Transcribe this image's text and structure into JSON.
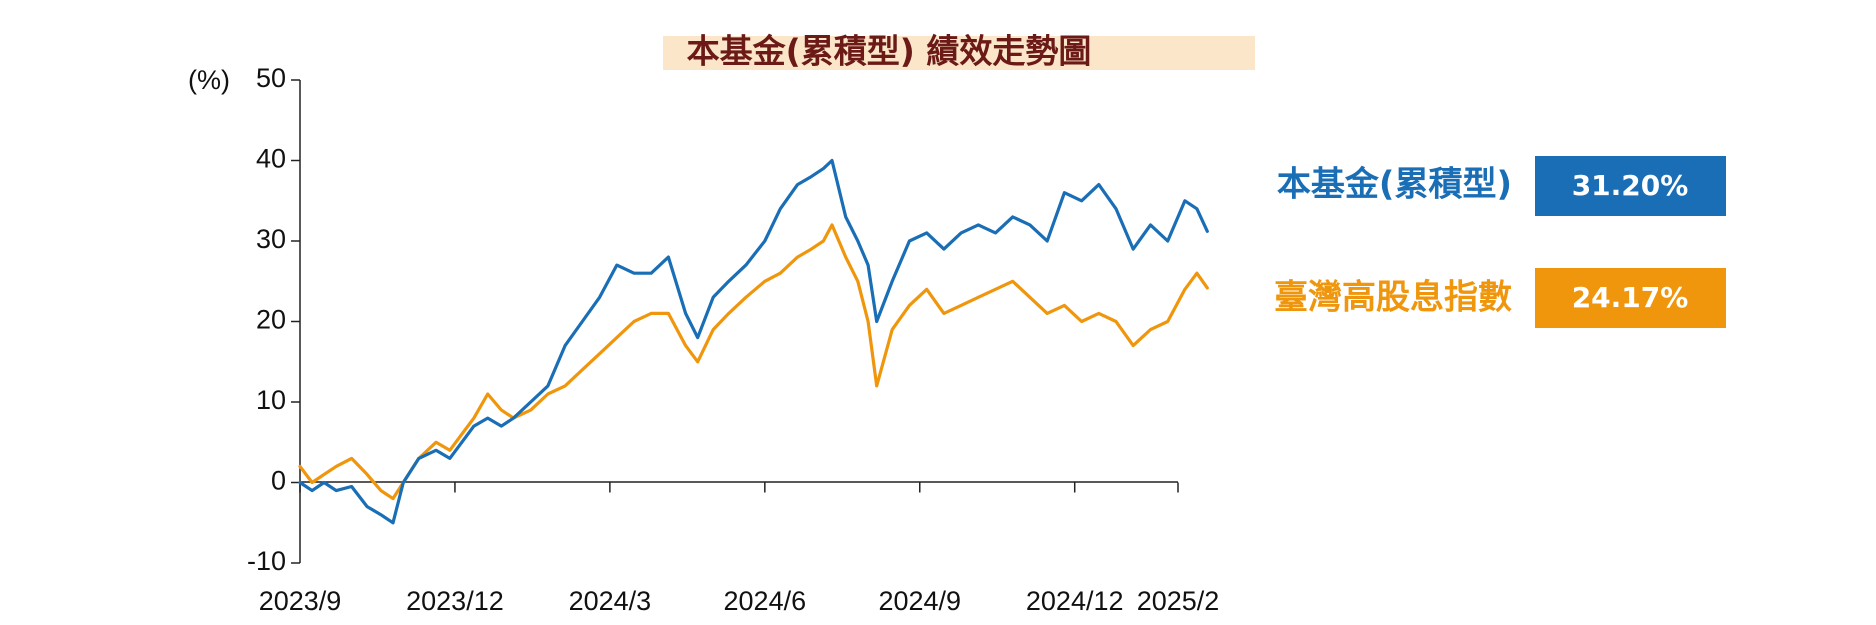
{
  "chart_data": {
    "type": "line",
    "title": "本基金(累積型) 績效走勢圖",
    "ylabel": "(%)",
    "xlabel": "",
    "ylim": [
      -10,
      50
    ],
    "yticks": [
      -10,
      0,
      10,
      20,
      30,
      40,
      50
    ],
    "x_tick_labels": [
      "2023/9",
      "2023/12",
      "2024/3",
      "2024/6",
      "2024/9",
      "2024/12",
      "2025/2"
    ],
    "x_range": [
      "2023-09",
      "2025-02"
    ],
    "grid": false,
    "legend_position": "right",
    "series": [
      {
        "name": "本基金(累積型)",
        "color": "#1a6eb5",
        "return_label": "31.20%",
        "points": [
          [
            "2023-09-01",
            0
          ],
          [
            "2023-09-08",
            -1
          ],
          [
            "2023-09-15",
            0
          ],
          [
            "2023-09-22",
            -1
          ],
          [
            "2023-10-01",
            -0.5
          ],
          [
            "2023-10-10",
            -3
          ],
          [
            "2023-10-18",
            -4
          ],
          [
            "2023-10-25",
            -5
          ],
          [
            "2023-11-01",
            0
          ],
          [
            "2023-11-10",
            3
          ],
          [
            "2023-11-20",
            4
          ],
          [
            "2023-11-28",
            3
          ],
          [
            "2023-12-05",
            5
          ],
          [
            "2023-12-12",
            7
          ],
          [
            "2023-12-20",
            8
          ],
          [
            "2023-12-28",
            7
          ],
          [
            "2024-01-05",
            8
          ],
          [
            "2024-01-15",
            10
          ],
          [
            "2024-01-25",
            12
          ],
          [
            "2024-02-05",
            17
          ],
          [
            "2024-02-15",
            20
          ],
          [
            "2024-02-25",
            23
          ],
          [
            "2024-03-05",
            27
          ],
          [
            "2024-03-15",
            26
          ],
          [
            "2024-03-25",
            26
          ],
          [
            "2024-04-05",
            28
          ],
          [
            "2024-04-15",
            21
          ],
          [
            "2024-04-22",
            18
          ],
          [
            "2024-05-01",
            23
          ],
          [
            "2024-05-10",
            25
          ],
          [
            "2024-05-20",
            27
          ],
          [
            "2024-06-01",
            30
          ],
          [
            "2024-06-10",
            34
          ],
          [
            "2024-06-20",
            37
          ],
          [
            "2024-06-28",
            38
          ],
          [
            "2024-07-05",
            39
          ],
          [
            "2024-07-10",
            40
          ],
          [
            "2024-07-18",
            33
          ],
          [
            "2024-07-25",
            30
          ],
          [
            "2024-08-01",
            27
          ],
          [
            "2024-08-06",
            20
          ],
          [
            "2024-08-15",
            25
          ],
          [
            "2024-08-25",
            30
          ],
          [
            "2024-09-05",
            31
          ],
          [
            "2024-09-15",
            29
          ],
          [
            "2024-09-25",
            31
          ],
          [
            "2024-10-05",
            32
          ],
          [
            "2024-10-15",
            31
          ],
          [
            "2024-10-25",
            33
          ],
          [
            "2024-11-05",
            32
          ],
          [
            "2024-11-15",
            30
          ],
          [
            "2024-11-25",
            36
          ],
          [
            "2024-12-05",
            35
          ],
          [
            "2024-12-15",
            37
          ],
          [
            "2024-12-25",
            34
          ],
          [
            "2025-01-05",
            29
          ],
          [
            "2025-01-15",
            32
          ],
          [
            "2025-01-25",
            30
          ],
          [
            "2025-02-05",
            35
          ],
          [
            "2025-02-12",
            34
          ],
          [
            "2025-02-18",
            31.2
          ]
        ]
      },
      {
        "name": "臺灣高股息指數",
        "color": "#f0960c",
        "return_label": "24.17%",
        "points": [
          [
            "2023-09-01",
            2
          ],
          [
            "2023-09-08",
            0
          ],
          [
            "2023-09-15",
            1
          ],
          [
            "2023-09-22",
            2
          ],
          [
            "2023-10-01",
            3
          ],
          [
            "2023-10-10",
            1
          ],
          [
            "2023-10-18",
            -1
          ],
          [
            "2023-10-25",
            -2
          ],
          [
            "2023-11-01",
            0
          ],
          [
            "2023-11-10",
            3
          ],
          [
            "2023-11-20",
            5
          ],
          [
            "2023-11-28",
            4
          ],
          [
            "2023-12-05",
            6
          ],
          [
            "2023-12-12",
            8
          ],
          [
            "2023-12-20",
            11
          ],
          [
            "2023-12-28",
            9
          ],
          [
            "2024-01-05",
            8
          ],
          [
            "2024-01-15",
            9
          ],
          [
            "2024-01-25",
            11
          ],
          [
            "2024-02-05",
            12
          ],
          [
            "2024-02-15",
            14
          ],
          [
            "2024-02-25",
            16
          ],
          [
            "2024-03-05",
            18
          ],
          [
            "2024-03-15",
            20
          ],
          [
            "2024-03-25",
            21
          ],
          [
            "2024-04-05",
            21
          ],
          [
            "2024-04-15",
            17
          ],
          [
            "2024-04-22",
            15
          ],
          [
            "2024-05-01",
            19
          ],
          [
            "2024-05-10",
            21
          ],
          [
            "2024-05-20",
            23
          ],
          [
            "2024-06-01",
            25
          ],
          [
            "2024-06-10",
            26
          ],
          [
            "2024-06-20",
            28
          ],
          [
            "2024-06-28",
            29
          ],
          [
            "2024-07-05",
            30
          ],
          [
            "2024-07-10",
            32
          ],
          [
            "2024-07-18",
            28
          ],
          [
            "2024-07-25",
            25
          ],
          [
            "2024-08-01",
            20
          ],
          [
            "2024-08-06",
            12
          ],
          [
            "2024-08-15",
            19
          ],
          [
            "2024-08-25",
            22
          ],
          [
            "2024-09-05",
            24
          ],
          [
            "2024-09-15",
            21
          ],
          [
            "2024-09-25",
            22
          ],
          [
            "2024-10-05",
            23
          ],
          [
            "2024-10-15",
            24
          ],
          [
            "2024-10-25",
            25
          ],
          [
            "2024-11-05",
            23
          ],
          [
            "2024-11-15",
            21
          ],
          [
            "2024-11-25",
            22
          ],
          [
            "2024-12-05",
            20
          ],
          [
            "2024-12-15",
            21
          ],
          [
            "2024-12-25",
            20
          ],
          [
            "2025-01-05",
            17
          ],
          [
            "2025-01-15",
            19
          ],
          [
            "2025-01-25",
            20
          ],
          [
            "2025-02-05",
            24
          ],
          [
            "2025-02-12",
            26
          ],
          [
            "2025-02-18",
            24.17
          ]
        ]
      }
    ]
  }
}
